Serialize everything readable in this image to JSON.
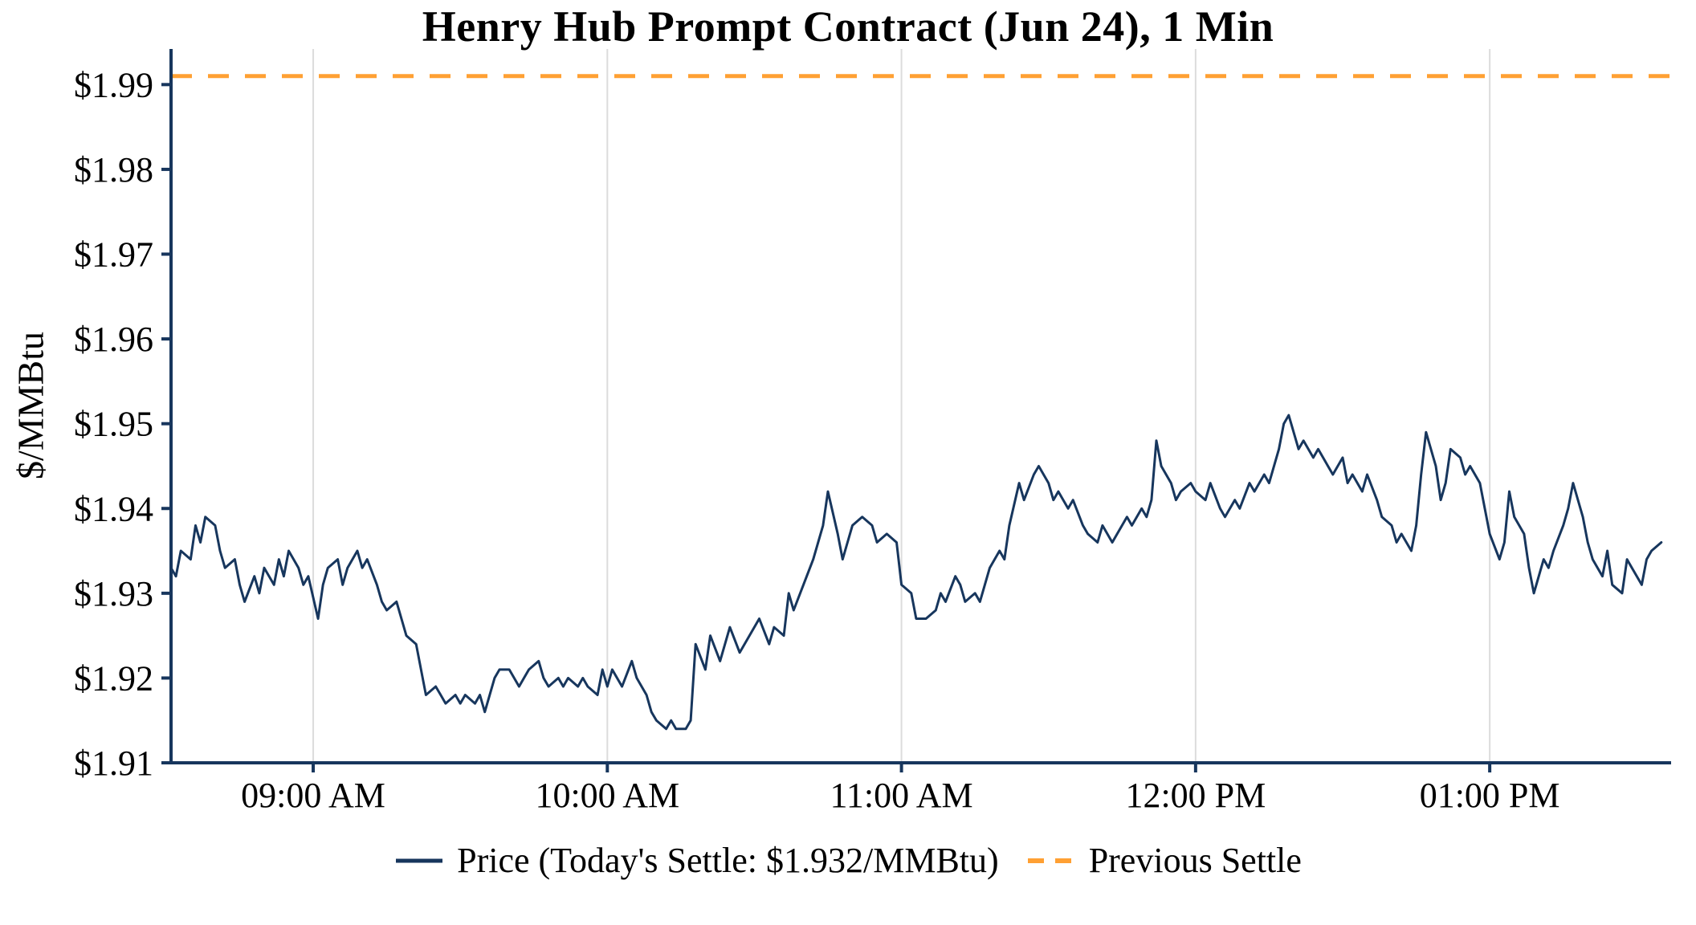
{
  "title": "Henry Hub Prompt Contract (Jun 24), 1 Min",
  "y_axis_label": "$/MMBtu",
  "legend": {
    "price_label": "Price (Today's Settle: $1.932/MMBtu)",
    "settle_label": "Previous Settle"
  },
  "colors": {
    "price_line": "#17365d",
    "settle_line": "#ffa033",
    "axis": "#17365d",
    "grid": "#dcdcdc",
    "text": "#000000"
  },
  "chart_data": {
    "type": "line",
    "title": "Henry Hub Prompt Contract (Jun 24), 1 Min",
    "xlabel": "",
    "ylabel": "$/MMBtu",
    "grid": "vertical-only",
    "legend_position": "bottom",
    "x_unit": "minutes-since-midnight",
    "x_domain": [
      511,
      817
    ],
    "y_domain": [
      1.91,
      1.9942
    ],
    "previous_settle": 1.991,
    "todays_settle": 1.932,
    "x_ticks": [
      {
        "t": 540,
        "label": "09:00 AM"
      },
      {
        "t": 600,
        "label": "10:00 AM"
      },
      {
        "t": 660,
        "label": "11:00 AM"
      },
      {
        "t": 720,
        "label": "12:00 PM"
      },
      {
        "t": 780,
        "label": "01:00 PM"
      }
    ],
    "y_ticks": [
      {
        "v": 1.91,
        "label": "$1.91"
      },
      {
        "v": 1.92,
        "label": "$1.92"
      },
      {
        "v": 1.93,
        "label": "$1.93"
      },
      {
        "v": 1.94,
        "label": "$1.94"
      },
      {
        "v": 1.95,
        "label": "$1.95"
      },
      {
        "v": 1.96,
        "label": "$1.96"
      },
      {
        "v": 1.97,
        "label": "$1.97"
      },
      {
        "v": 1.98,
        "label": "$1.98"
      },
      {
        "v": 1.99,
        "label": "$1.99"
      }
    ],
    "series": [
      {
        "name": "Price",
        "points": [
          [
            511,
            1.933
          ],
          [
            512,
            1.932
          ],
          [
            513,
            1.935
          ],
          [
            515,
            1.934
          ],
          [
            516,
            1.938
          ],
          [
            517,
            1.936
          ],
          [
            518,
            1.939
          ],
          [
            520,
            1.938
          ],
          [
            521,
            1.935
          ],
          [
            522,
            1.933
          ],
          [
            524,
            1.934
          ],
          [
            525,
            1.931
          ],
          [
            526,
            1.929
          ],
          [
            528,
            1.932
          ],
          [
            529,
            1.93
          ],
          [
            530,
            1.933
          ],
          [
            532,
            1.931
          ],
          [
            533,
            1.934
          ],
          [
            534,
            1.932
          ],
          [
            535,
            1.935
          ],
          [
            537,
            1.933
          ],
          [
            538,
            1.931
          ],
          [
            539,
            1.932
          ],
          [
            541,
            1.927
          ],
          [
            542,
            1.931
          ],
          [
            543,
            1.933
          ],
          [
            545,
            1.934
          ],
          [
            546,
            1.931
          ],
          [
            547,
            1.933
          ],
          [
            549,
            1.935
          ],
          [
            550,
            1.933
          ],
          [
            551,
            1.934
          ],
          [
            553,
            1.931
          ],
          [
            554,
            1.929
          ],
          [
            555,
            1.928
          ],
          [
            557,
            1.929
          ],
          [
            558,
            1.927
          ],
          [
            559,
            1.925
          ],
          [
            561,
            1.924
          ],
          [
            562,
            1.921
          ],
          [
            563,
            1.918
          ],
          [
            565,
            1.919
          ],
          [
            566,
            1.918
          ],
          [
            567,
            1.917
          ],
          [
            569,
            1.918
          ],
          [
            570,
            1.917
          ],
          [
            571,
            1.918
          ],
          [
            573,
            1.917
          ],
          [
            574,
            1.918
          ],
          [
            575,
            1.916
          ],
          [
            577,
            1.92
          ],
          [
            578,
            1.921
          ],
          [
            580,
            1.921
          ],
          [
            582,
            1.919
          ],
          [
            583,
            1.92
          ],
          [
            584,
            1.921
          ],
          [
            586,
            1.922
          ],
          [
            587,
            1.92
          ],
          [
            588,
            1.919
          ],
          [
            590,
            1.92
          ],
          [
            591,
            1.919
          ],
          [
            592,
            1.92
          ],
          [
            594,
            1.919
          ],
          [
            595,
            1.92
          ],
          [
            596,
            1.919
          ],
          [
            598,
            1.918
          ],
          [
            599,
            1.921
          ],
          [
            600,
            1.919
          ],
          [
            601,
            1.921
          ],
          [
            603,
            1.919
          ],
          [
            605,
            1.922
          ],
          [
            606,
            1.92
          ],
          [
            608,
            1.918
          ],
          [
            609,
            1.916
          ],
          [
            610,
            1.915
          ],
          [
            612,
            1.914
          ],
          [
            613,
            1.915
          ],
          [
            614,
            1.914
          ],
          [
            616,
            1.914
          ],
          [
            617,
            1.915
          ],
          [
            618,
            1.924
          ],
          [
            620,
            1.921
          ],
          [
            621,
            1.925
          ],
          [
            623,
            1.922
          ],
          [
            625,
            1.926
          ],
          [
            627,
            1.923
          ],
          [
            629,
            1.925
          ],
          [
            631,
            1.927
          ],
          [
            633,
            1.924
          ],
          [
            634,
            1.926
          ],
          [
            636,
            1.925
          ],
          [
            637,
            1.93
          ],
          [
            638,
            1.928
          ],
          [
            640,
            1.931
          ],
          [
            642,
            1.934
          ],
          [
            644,
            1.938
          ],
          [
            645,
            1.942
          ],
          [
            647,
            1.937
          ],
          [
            648,
            1.934
          ],
          [
            649,
            1.936
          ],
          [
            650,
            1.938
          ],
          [
            652,
            1.939
          ],
          [
            654,
            1.938
          ],
          [
            655,
            1.936
          ],
          [
            657,
            1.937
          ],
          [
            659,
            1.936
          ],
          [
            660,
            1.931
          ],
          [
            662,
            1.93
          ],
          [
            663,
            1.927
          ],
          [
            665,
            1.927
          ],
          [
            667,
            1.928
          ],
          [
            668,
            1.93
          ],
          [
            669,
            1.929
          ],
          [
            671,
            1.932
          ],
          [
            672,
            1.931
          ],
          [
            673,
            1.929
          ],
          [
            675,
            1.93
          ],
          [
            676,
            1.929
          ],
          [
            678,
            1.933
          ],
          [
            680,
            1.935
          ],
          [
            681,
            1.934
          ],
          [
            682,
            1.938
          ],
          [
            684,
            1.943
          ],
          [
            685,
            1.941
          ],
          [
            687,
            1.944
          ],
          [
            688,
            1.945
          ],
          [
            690,
            1.943
          ],
          [
            691,
            1.941
          ],
          [
            692,
            1.942
          ],
          [
            694,
            1.94
          ],
          [
            695,
            1.941
          ],
          [
            697,
            1.938
          ],
          [
            698,
            1.937
          ],
          [
            700,
            1.936
          ],
          [
            701,
            1.938
          ],
          [
            703,
            1.936
          ],
          [
            704,
            1.937
          ],
          [
            706,
            1.939
          ],
          [
            707,
            1.938
          ],
          [
            709,
            1.94
          ],
          [
            710,
            1.939
          ],
          [
            711,
            1.941
          ],
          [
            712,
            1.948
          ],
          [
            713,
            1.945
          ],
          [
            715,
            1.943
          ],
          [
            716,
            1.941
          ],
          [
            717,
            1.942
          ],
          [
            719,
            1.943
          ],
          [
            720,
            1.942
          ],
          [
            722,
            1.941
          ],
          [
            723,
            1.943
          ],
          [
            725,
            1.94
          ],
          [
            726,
            1.939
          ],
          [
            728,
            1.941
          ],
          [
            729,
            1.94
          ],
          [
            731,
            1.943
          ],
          [
            732,
            1.942
          ],
          [
            734,
            1.944
          ],
          [
            735,
            1.943
          ],
          [
            737,
            1.947
          ],
          [
            738,
            1.95
          ],
          [
            739,
            1.951
          ],
          [
            741,
            1.947
          ],
          [
            742,
            1.948
          ],
          [
            744,
            1.946
          ],
          [
            745,
            1.947
          ],
          [
            747,
            1.945
          ],
          [
            748,
            1.944
          ],
          [
            750,
            1.946
          ],
          [
            751,
            1.943
          ],
          [
            752,
            1.944
          ],
          [
            754,
            1.942
          ],
          [
            755,
            1.944
          ],
          [
            757,
            1.941
          ],
          [
            758,
            1.939
          ],
          [
            760,
            1.938
          ],
          [
            761,
            1.936
          ],
          [
            762,
            1.937
          ],
          [
            764,
            1.935
          ],
          [
            765,
            1.938
          ],
          [
            766,
            1.944
          ],
          [
            767,
            1.949
          ],
          [
            769,
            1.945
          ],
          [
            770,
            1.941
          ],
          [
            771,
            1.943
          ],
          [
            772,
            1.947
          ],
          [
            774,
            1.946
          ],
          [
            775,
            1.944
          ],
          [
            776,
            1.945
          ],
          [
            778,
            1.943
          ],
          [
            779,
            1.94
          ],
          [
            780,
            1.937
          ],
          [
            782,
            1.934
          ],
          [
            783,
            1.936
          ],
          [
            784,
            1.942
          ],
          [
            785,
            1.939
          ],
          [
            787,
            1.937
          ],
          [
            788,
            1.933
          ],
          [
            789,
            1.93
          ],
          [
            791,
            1.934
          ],
          [
            792,
            1.933
          ],
          [
            793,
            1.935
          ],
          [
            795,
            1.938
          ],
          [
            796,
            1.94
          ],
          [
            797,
            1.943
          ],
          [
            799,
            1.939
          ],
          [
            800,
            1.936
          ],
          [
            801,
            1.934
          ],
          [
            803,
            1.932
          ],
          [
            804,
            1.935
          ],
          [
            805,
            1.931
          ],
          [
            807,
            1.93
          ],
          [
            808,
            1.934
          ],
          [
            809,
            1.933
          ],
          [
            811,
            1.931
          ],
          [
            812,
            1.934
          ],
          [
            813,
            1.935
          ],
          [
            815,
            1.936
          ]
        ]
      }
    ]
  }
}
